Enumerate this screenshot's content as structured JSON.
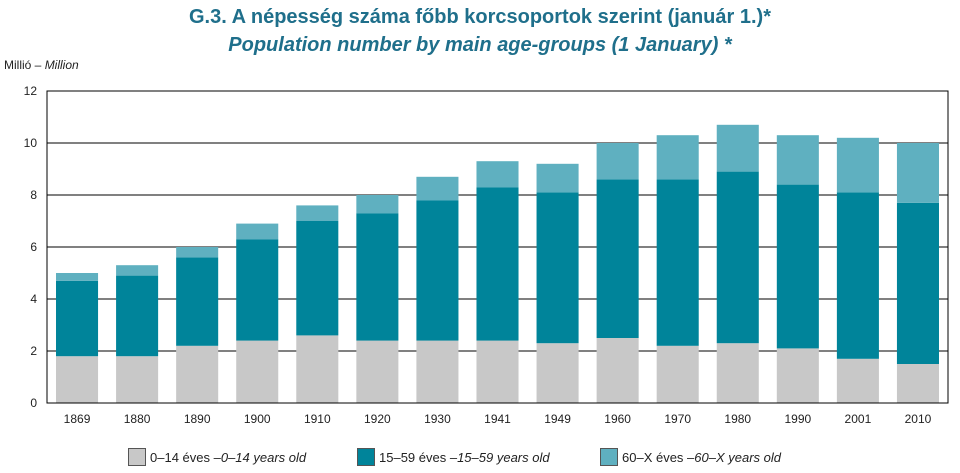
{
  "title_hu": "G.3.  A népesség száma főbb korcsoportok szerint (január 1.)*",
  "title_en": "Population number by main age-groups (1 January) *",
  "yunit_hu": "Millió – ",
  "yunit_en": "Million",
  "colors": {
    "young": "#c8c8c8",
    "working": "#00849a",
    "old": "#5fb0c0",
    "plot_border": "#000000",
    "grid": "#000000"
  },
  "legend": [
    {
      "label_hu": "0–14 éves – ",
      "label_en": "0–14 years old",
      "color": "#c8c8c8"
    },
    {
      "label_hu": "15–59 éves – ",
      "label_en": "15–59 years old",
      "color": "#00849a"
    },
    {
      "label_hu": "60–X éves – ",
      "label_en": "60–X years old",
      "color": "#5fb0c0"
    }
  ],
  "chart_data": {
    "type": "bar",
    "stacked": true,
    "categories": [
      "1869",
      "1880",
      "1890",
      "1900",
      "1910",
      "1920",
      "1930",
      "1941",
      "1949",
      "1960",
      "1970",
      "1980",
      "1990",
      "2001",
      "2010"
    ],
    "series": [
      {
        "name": "0–14 éves – 0–14 years old",
        "values": [
          1.8,
          1.8,
          2.2,
          2.4,
          2.6,
          2.4,
          2.4,
          2.4,
          2.3,
          2.5,
          2.2,
          2.3,
          2.1,
          1.7,
          1.5
        ]
      },
      {
        "name": "15–59 éves – 15–59 years old",
        "values": [
          2.9,
          3.1,
          3.4,
          3.9,
          4.4,
          4.9,
          5.4,
          5.9,
          5.8,
          6.1,
          6.4,
          6.6,
          6.3,
          6.4,
          6.2
        ]
      },
      {
        "name": "60–X éves – 60–X years old",
        "values": [
          0.3,
          0.4,
          0.4,
          0.6,
          0.6,
          0.7,
          0.9,
          1.0,
          1.1,
          1.4,
          1.7,
          1.8,
          1.9,
          2.1,
          2.3
        ]
      }
    ],
    "yticks": [
      0,
      2,
      4,
      6,
      8,
      10,
      12
    ],
    "ylim": [
      0,
      12
    ],
    "grid": true,
    "legend_position": "bottom"
  }
}
